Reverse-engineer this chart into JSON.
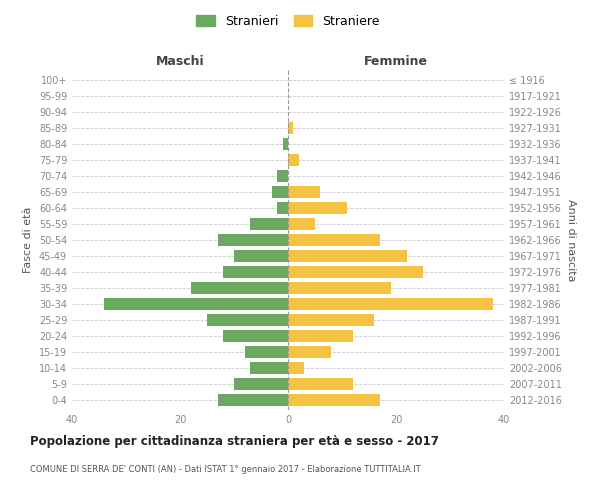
{
  "age_groups": [
    "0-4",
    "5-9",
    "10-14",
    "15-19",
    "20-24",
    "25-29",
    "30-34",
    "35-39",
    "40-44",
    "45-49",
    "50-54",
    "55-59",
    "60-64",
    "65-69",
    "70-74",
    "75-79",
    "80-84",
    "85-89",
    "90-94",
    "95-99",
    "100+"
  ],
  "birth_years": [
    "2012-2016",
    "2007-2011",
    "2002-2006",
    "1997-2001",
    "1992-1996",
    "1987-1991",
    "1982-1986",
    "1977-1981",
    "1972-1976",
    "1967-1971",
    "1962-1966",
    "1957-1961",
    "1952-1956",
    "1947-1951",
    "1942-1946",
    "1937-1941",
    "1932-1936",
    "1927-1931",
    "1922-1926",
    "1917-1921",
    "≤ 1916"
  ],
  "maschi": [
    13,
    10,
    7,
    8,
    12,
    15,
    34,
    18,
    12,
    10,
    13,
    7,
    2,
    3,
    2,
    0,
    1,
    0,
    0,
    0,
    0
  ],
  "femmine": [
    17,
    12,
    3,
    8,
    12,
    16,
    38,
    19,
    25,
    22,
    17,
    5,
    11,
    6,
    0,
    2,
    0,
    1,
    0,
    0,
    0
  ],
  "maschi_color": "#6aaa5e",
  "femmine_color": "#f5c242",
  "title": "Popolazione per cittadinanza straniera per età e sesso - 2017",
  "subtitle": "COMUNE DI SERRA DE' CONTI (AN) - Dati ISTAT 1° gennaio 2017 - Elaborazione TUTTITALIA.IT",
  "xlabel_left": "Maschi",
  "xlabel_right": "Femmine",
  "ylabel_left": "Fasce di età",
  "ylabel_right": "Anni di nascita",
  "xlim": 40,
  "legend_stranieri": "Stranieri",
  "legend_straniere": "Straniere",
  "bg_color": "#ffffff",
  "grid_color": "#cccccc",
  "axis_label_color": "#555555",
  "tick_color": "#888888"
}
